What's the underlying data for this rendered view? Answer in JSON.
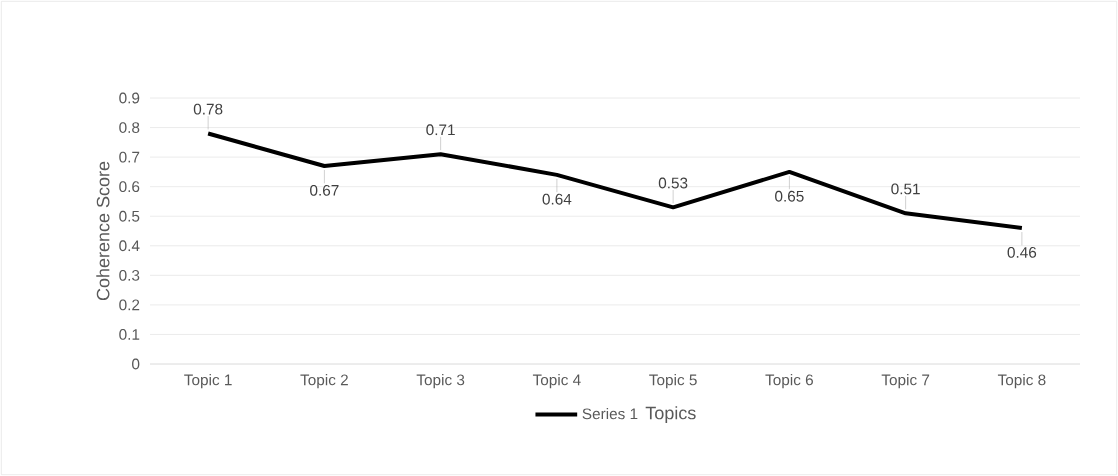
{
  "chart_data": {
    "type": "line",
    "xlabel": "Topics",
    "ylabel": "Coherence Score",
    "categories": [
      "Topic 1",
      "Topic 2",
      "Topic 3",
      "Topic 4",
      "Topic 5",
      "Topic 6",
      "Topic 7",
      "Topic 8"
    ],
    "series": [
      {
        "name": "Series 1",
        "color": "#000000",
        "values": [
          0.78,
          0.67,
          0.71,
          0.64,
          0.53,
          0.65,
          0.51,
          0.46
        ]
      }
    ],
    "ylim": [
      0,
      0.9
    ],
    "yticks": [
      0,
      0.1,
      0.2,
      0.3,
      0.4,
      0.5,
      0.6,
      0.7,
      0.8,
      0.9
    ],
    "grid": "y",
    "legend": "bottom",
    "marker": "none",
    "line_style": "solid",
    "data_labels": true
  }
}
